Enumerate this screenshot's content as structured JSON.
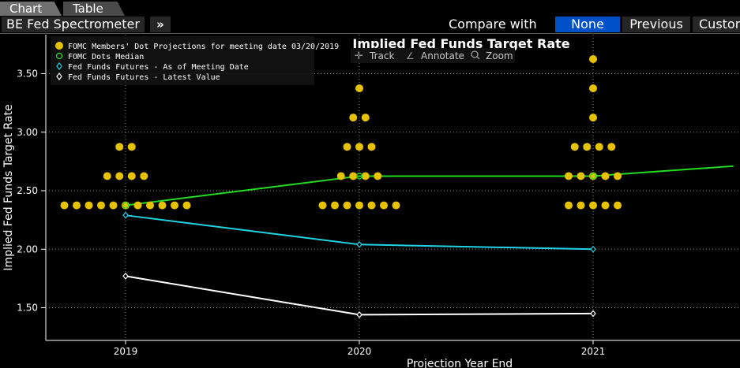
{
  "tabs": {
    "chart": "Chart",
    "table": "Table"
  },
  "toolbar": {
    "title": "BE Fed Spectrometer",
    "expand": "»",
    "compare_with": "Compare with",
    "none": "None",
    "previous": "Previous",
    "custom": "Custom"
  },
  "chart_tools": {
    "track": "Track",
    "annotate": "Annotate",
    "zoom": "Zoom"
  },
  "colors": {
    "dots": "#e6c200",
    "median": "#22dd22",
    "futures_meeting": "#22d3e6",
    "futures_latest": "#ffffff"
  },
  "chart_data": {
    "type": "scatter",
    "title": "Implied Fed Funds Target Rate",
    "xlabel": "Projection Year End",
    "ylabel": "Implied Fed Funds Target Rate",
    "x_ticks": [
      "2019",
      "2020",
      "2021"
    ],
    "y_ticks": [
      "1.50",
      "2.00",
      "2.50",
      "3.00",
      "3.50"
    ],
    "ylim": [
      1.25,
      3.8
    ],
    "grid": true,
    "legend": {
      "position": "top-left",
      "entries": [
        "FOMC Members' Dot Projections for meeting date 03/20/2019",
        "FOMC Dots Median",
        "Fed Funds Futures - As of Meeting Date",
        "Fed Funds Futures - Latest Value"
      ]
    },
    "dot_projections": [
      {
        "year": 2019,
        "rate": 2.875,
        "count": 2
      },
      {
        "year": 2019,
        "rate": 2.625,
        "count": 4
      },
      {
        "year": 2019,
        "rate": 2.375,
        "count": 11
      },
      {
        "year": 2020,
        "rate": 3.375,
        "count": 1
      },
      {
        "year": 2020,
        "rate": 3.125,
        "count": 2
      },
      {
        "year": 2020,
        "rate": 2.875,
        "count": 3
      },
      {
        "year": 2020,
        "rate": 2.625,
        "count": 4
      },
      {
        "year": 2020,
        "rate": 2.375,
        "count": 7
      },
      {
        "year": 2021,
        "rate": 3.625,
        "count": 1
      },
      {
        "year": 2021,
        "rate": 3.375,
        "count": 1
      },
      {
        "year": 2021,
        "rate": 3.125,
        "count": 1
      },
      {
        "year": 2021,
        "rate": 2.875,
        "count": 4
      },
      {
        "year": 2021,
        "rate": 2.625,
        "count": 5
      },
      {
        "year": 2021,
        "rate": 2.375,
        "count": 5
      }
    ],
    "series": [
      {
        "name": "FOMC Dots Median",
        "x": [
          2019,
          2020,
          2021,
          2021.6
        ],
        "values": [
          2.375,
          2.625,
          2.625,
          2.71
        ]
      },
      {
        "name": "Fed Funds Futures - As of Meeting Date",
        "x": [
          2019,
          2020,
          2021
        ],
        "values": [
          2.29,
          2.04,
          2.0
        ]
      },
      {
        "name": "Fed Funds Futures - Latest Value",
        "x": [
          2019,
          2020,
          2021
        ],
        "values": [
          1.77,
          1.44,
          1.45
        ]
      }
    ]
  }
}
